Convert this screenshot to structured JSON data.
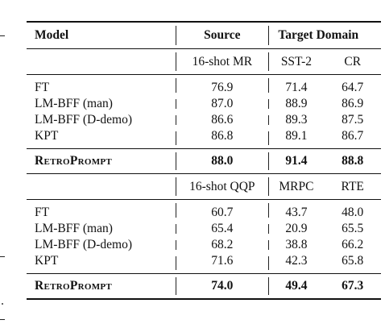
{
  "table": {
    "header": {
      "model": "Model",
      "source": "Source",
      "target": "Target Domain"
    },
    "sections": [
      {
        "source_task": "16-shot MR",
        "target_tasks": [
          "SST-2",
          "CR"
        ],
        "rows": [
          {
            "model": "FT",
            "source": "76.9",
            "t1": "71.4",
            "t2": "64.7"
          },
          {
            "model": "LM-BFF (man)",
            "source": "87.0",
            "t1": "88.9",
            "t2": "86.9"
          },
          {
            "model": "LM-BFF (D-demo)",
            "source": "86.6",
            "t1": "89.3",
            "t2": "87.5"
          },
          {
            "model": "KPT",
            "source": "86.8",
            "t1": "89.1",
            "t2": "86.7"
          }
        ],
        "best": {
          "model": "RetroPrompt",
          "source": "88.0",
          "t1": "91.4",
          "t2": "88.8"
        }
      },
      {
        "source_task": "16-shot QQP",
        "target_tasks": [
          "MRPC",
          "RTE"
        ],
        "rows": [
          {
            "model": "FT",
            "source": "60.7",
            "t1": "43.7",
            "t2": "48.0"
          },
          {
            "model": "LM-BFF (man)",
            "source": "65.4",
            "t1": "20.9",
            "t2": "65.5"
          },
          {
            "model": "LM-BFF (D-demo)",
            "source": "68.2",
            "t1": "38.8",
            "t2": "66.2"
          },
          {
            "model": "KPT",
            "source": "71.6",
            "t1": "42.3",
            "t2": "65.8"
          }
        ],
        "best": {
          "model": "RetroPrompt",
          "source": "74.0",
          "t1": "49.4",
          "t2": "67.3"
        }
      }
    ]
  }
}
